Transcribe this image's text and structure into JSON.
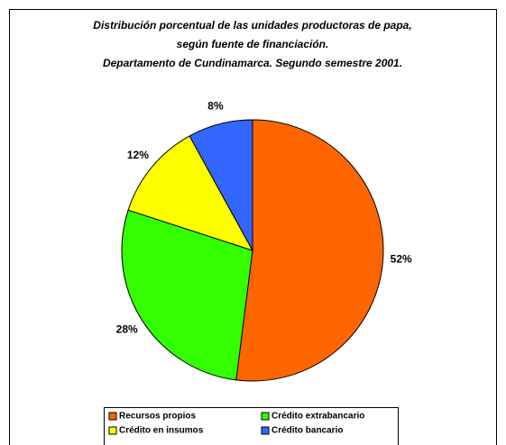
{
  "chart_data": {
    "type": "pie",
    "title": [
      "Distribución porcentual de las unidades productoras de papa,",
      "según fuente de financiación.",
      "Departamento de Cundinamarca. Segundo semestre 2001."
    ],
    "categories": [
      "Recursos propios",
      "Crédito extrabancario",
      "Crédito en insumos",
      "Crédito bancario"
    ],
    "values": [
      52,
      28,
      12,
      8
    ],
    "value_labels": [
      "52%",
      "28%",
      "12%",
      "8%"
    ],
    "colors": [
      "#ff6600",
      "#33ff00",
      "#ffff00",
      "#3366ff"
    ]
  }
}
